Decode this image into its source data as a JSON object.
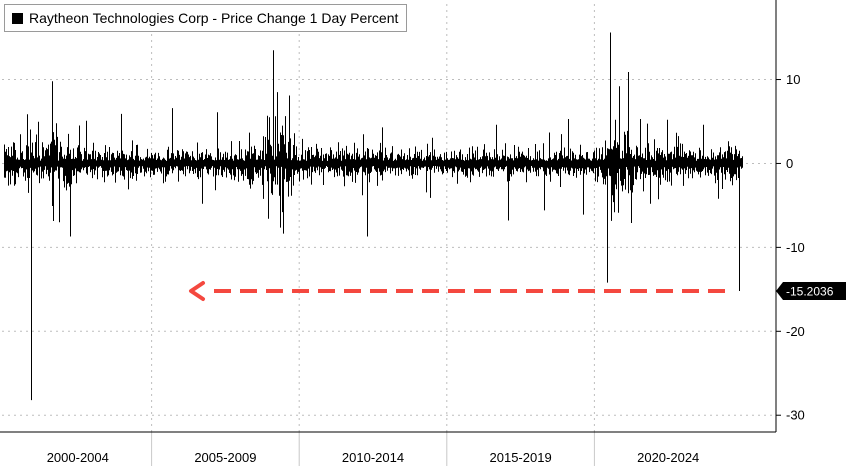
{
  "chart_data": {
    "type": "line",
    "title": "",
    "legend": {
      "label": "Raytheon Technologies Corp - Price Change 1 Day Percent",
      "color": "#000000",
      "placement": "top-left"
    },
    "series": [
      {
        "name": "Raytheon Technologies Corp - Price Change 1 Day Percent",
        "color": "#000000"
      }
    ],
    "x_categories": [
      "2000-2004",
      "2005-2009",
      "2010-2014",
      "2015-2019",
      "2020-2024"
    ],
    "x_range": [
      2000,
      2024.6
    ],
    "ylim": [
      -32,
      19
    ],
    "y_ticks": [
      10,
      0,
      -10,
      -20,
      -30
    ],
    "y_axis_side": "right",
    "grid": true,
    "last_value": {
      "label": "-15.2036",
      "value": -15.2036
    },
    "spikes": [
      {
        "x": 2000.9,
        "y": -28.2
      },
      {
        "x": 2001.6,
        "y": 9.8
      },
      {
        "x": 2002.2,
        "y": -8.7
      },
      {
        "x": 2003.9,
        "y": 5.9
      },
      {
        "x": 2005.6,
        "y": 6.6
      },
      {
        "x": 2006.6,
        "y": -4.8
      },
      {
        "x": 2007.1,
        "y": 6.1
      },
      {
        "x": 2008.8,
        "y": -6.6
      },
      {
        "x": 2008.95,
        "y": 13.5
      },
      {
        "x": 2009.1,
        "y": 8.5
      },
      {
        "x": 2009.25,
        "y": -5.8
      },
      {
        "x": 2009.5,
        "y": 8.1
      },
      {
        "x": 2012.1,
        "y": -8.7
      },
      {
        "x": 2012.6,
        "y": 4.3
      },
      {
        "x": 2014.2,
        "y": -4.1
      },
      {
        "x": 2016.4,
        "y": 4.6
      },
      {
        "x": 2016.8,
        "y": -6.8
      },
      {
        "x": 2018.0,
        "y": -5.6
      },
      {
        "x": 2018.8,
        "y": 5.3
      },
      {
        "x": 2019.3,
        "y": -6.1
      },
      {
        "x": 2020.1,
        "y": -14.2
      },
      {
        "x": 2020.2,
        "y": 15.6
      },
      {
        "x": 2020.3,
        "y": -4.6
      },
      {
        "x": 2020.5,
        "y": 9.2
      },
      {
        "x": 2020.8,
        "y": 10.9
      },
      {
        "x": 2020.9,
        "y": -7.1
      },
      {
        "x": 2021.2,
        "y": 5.3
      },
      {
        "x": 2022.1,
        "y": 5.2
      },
      {
        "x": 2023.3,
        "y": 4.6
      },
      {
        "x": 2023.8,
        "y": -4.2
      },
      {
        "x": 2024.5,
        "y": -15.2036
      }
    ],
    "volatility_regimes": [
      {
        "from": 2000.0,
        "to": 2002.0,
        "amp": 2.5
      },
      {
        "from": 2002.0,
        "to": 2002.8,
        "amp": 2.8
      },
      {
        "from": 2002.8,
        "to": 2007.5,
        "amp": 1.3
      },
      {
        "from": 2007.5,
        "to": 2008.6,
        "amp": 1.9
      },
      {
        "from": 2008.6,
        "to": 2009.5,
        "amp": 3.3
      },
      {
        "from": 2009.5,
        "to": 2011.0,
        "amp": 1.6
      },
      {
        "from": 2011.0,
        "to": 2012.2,
        "amp": 2.0
      },
      {
        "from": 2012.2,
        "to": 2019.8,
        "amp": 1.2
      },
      {
        "from": 2019.8,
        "to": 2020.2,
        "amp": 2.0
      },
      {
        "from": 2020.2,
        "to": 2020.9,
        "amp": 4.2
      },
      {
        "from": 2020.9,
        "to": 2022.5,
        "amp": 2.0
      },
      {
        "from": 2022.5,
        "to": 2024.6,
        "amp": 1.7
      }
    ],
    "annotation": {
      "type": "dashed-arrow",
      "color": "#f4483f",
      "direction": "left",
      "y": -15.2
    },
    "colors": {
      "line": "#000000",
      "grid": "#bdbdbd",
      "badge": "#000000",
      "annotation": "#f4483f"
    }
  }
}
